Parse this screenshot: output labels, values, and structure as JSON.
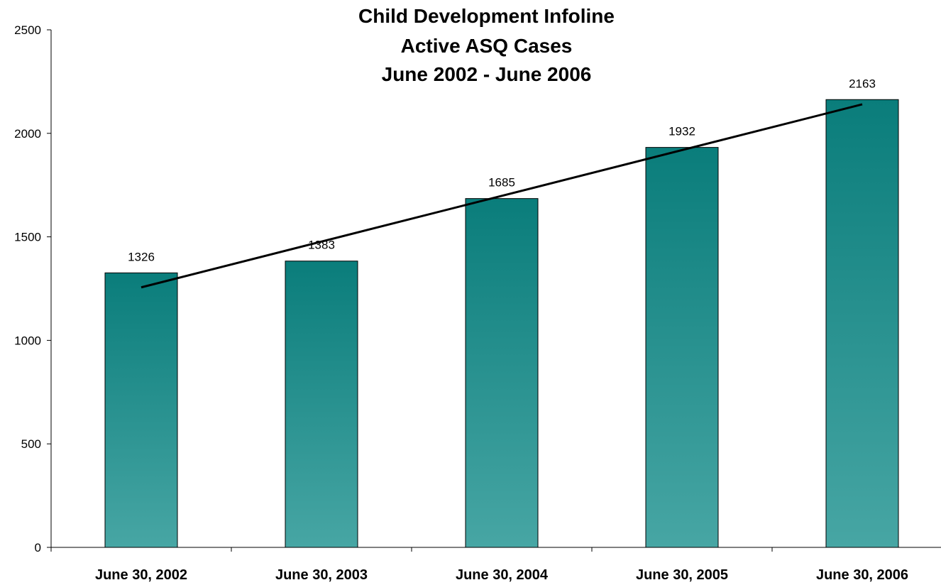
{
  "chart_data": {
    "type": "bar",
    "title": [
      "Child Development Infoline",
      "Active ASQ Cases",
      "June 2002 - June 2006"
    ],
    "xlabel": "",
    "ylabel": "",
    "categories": [
      "June 30, 2002",
      "June 30, 2003",
      "June 30, 2004",
      "June 30, 2005",
      "June 30, 2006"
    ],
    "values": [
      1326,
      1383,
      1685,
      1932,
      2163
    ],
    "data_labels": [
      "1326",
      "1383",
      "1685",
      "1932",
      "2163"
    ],
    "ylim": [
      0,
      2500
    ],
    "yticks": [
      0,
      500,
      1000,
      1500,
      2000,
      2500
    ],
    "ytick_labels": [
      "0",
      "500",
      "1000",
      "1500",
      "2000",
      "2500"
    ],
    "trendline": {
      "type": "linear",
      "start": 1256,
      "end": 2140
    },
    "grid": false,
    "legend": "none",
    "colors": {
      "bar_top": "#0a7d7b",
      "bar_bottom": "#47a6a4",
      "bar_border": "#000000",
      "trendline": "#000000"
    }
  }
}
